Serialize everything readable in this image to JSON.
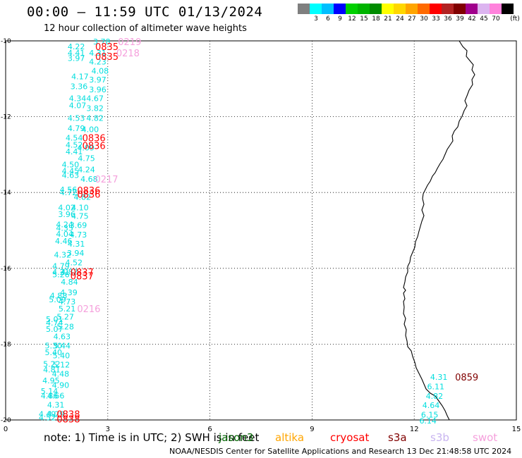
{
  "title": "00:00 — 11:59 UTC 01/13/2024",
  "subtitle": "12 hour collection of altimeter wave heights",
  "colorbar": {
    "unit": "(ft)",
    "items": [
      {
        "label": "",
        "color": "#7f7f7f"
      },
      {
        "label": "3",
        "color": "#00ffff"
      },
      {
        "label": "6",
        "color": "#00bfff"
      },
      {
        "label": "9",
        "color": "#0000ff"
      },
      {
        "label": "12",
        "color": "#00d000"
      },
      {
        "label": "15",
        "color": "#00b400"
      },
      {
        "label": "18",
        "color": "#008c00"
      },
      {
        "label": "21",
        "color": "#ffff00"
      },
      {
        "label": "24",
        "color": "#ffd700"
      },
      {
        "label": "27",
        "color": "#ffa500"
      },
      {
        "label": "30",
        "color": "#ff6a00"
      },
      {
        "label": "33",
        "color": "#ff0000"
      },
      {
        "label": "36",
        "color": "#b22222"
      },
      {
        "label": "39",
        "color": "#800000"
      },
      {
        "label": "42",
        "color": "#a0008c"
      },
      {
        "label": "45",
        "color": "#dcb4f0"
      },
      {
        "label": "70",
        "color": "#ff82dc"
      },
      {
        "label": "",
        "color": "#000000"
      }
    ]
  },
  "axes": {
    "x_ticks": [
      "0",
      "3",
      "6",
      "9",
      "12",
      "15"
    ],
    "y_ticks": [
      "-10",
      "-12",
      "-14",
      "-16",
      "-18",
      "-20"
    ],
    "x_range": [
      0,
      15
    ],
    "y_range": [
      -20,
      -10
    ]
  },
  "colors": {
    "wave": "#00dede",
    "jason3": "#006400",
    "altika": "#ffa500",
    "cryosat": "#ff0000",
    "s3a": "#800000",
    "s3b": "#c8b4f0",
    "swot": "#f5a0dc"
  },
  "wave_labels": [
    {
      "text": "3.78",
      "x": 2.57,
      "y": -10.0
    },
    {
      "text": "4.22",
      "x": 1.82,
      "y": -10.13
    },
    {
      "text": "4.41",
      "x": 1.82,
      "y": -10.3
    },
    {
      "text": "4.31",
      "x": 2.45,
      "y": -10.3
    },
    {
      "text": "3.97",
      "x": 1.82,
      "y": -10.44
    },
    {
      "text": "4.23",
      "x": 2.45,
      "y": -10.53
    },
    {
      "text": "4.08",
      "x": 2.52,
      "y": -10.77
    },
    {
      "text": "4.17",
      "x": 1.93,
      "y": -10.92
    },
    {
      "text": "3.97",
      "x": 2.45,
      "y": -11.0
    },
    {
      "text": "3.36",
      "x": 1.9,
      "y": -11.18
    },
    {
      "text": "3.96",
      "x": 2.45,
      "y": -11.26
    },
    {
      "text": "4.34",
      "x": 1.86,
      "y": -11.5
    },
    {
      "text": "4.67",
      "x": 2.37,
      "y": -11.5
    },
    {
      "text": "4.07",
      "x": 1.86,
      "y": -11.68
    },
    {
      "text": "3.82",
      "x": 2.37,
      "y": -11.76
    },
    {
      "text": "4.53",
      "x": 1.82,
      "y": -12.02
    },
    {
      "text": "4.82",
      "x": 2.37,
      "y": -12.02
    },
    {
      "text": "4.79",
      "x": 1.82,
      "y": -12.29
    },
    {
      "text": "4.00",
      "x": 2.23,
      "y": -12.31
    },
    {
      "text": "4.54",
      "x": 1.76,
      "y": -12.54
    },
    {
      "text": "4.52",
      "x": 1.76,
      "y": -12.72
    },
    {
      "text": "4.09",
      "x": 2.1,
      "y": -12.8
    },
    {
      "text": "4.41",
      "x": 1.76,
      "y": -12.9
    },
    {
      "text": "4.75",
      "x": 2.12,
      "y": -13.08
    },
    {
      "text": "4.50",
      "x": 1.65,
      "y": -13.24
    },
    {
      "text": "4.24",
      "x": 2.12,
      "y": -13.37
    },
    {
      "text": "4.45",
      "x": 1.65,
      "y": -13.41
    },
    {
      "text": "4.63",
      "x": 1.65,
      "y": -13.52
    },
    {
      "text": "4.68",
      "x": 2.2,
      "y": -13.62
    },
    {
      "text": "4.56",
      "x": 1.59,
      "y": -13.9
    },
    {
      "text": "4.72",
      "x": 1.59,
      "y": -13.98
    },
    {
      "text": "4.82",
      "x": 2.0,
      "y": -14.1
    },
    {
      "text": "4.02",
      "x": 1.54,
      "y": -14.38
    },
    {
      "text": "4.10",
      "x": 1.93,
      "y": -14.38
    },
    {
      "text": "3.96",
      "x": 1.54,
      "y": -14.55
    },
    {
      "text": "4.75",
      "x": 1.93,
      "y": -14.6
    },
    {
      "text": "4.24",
      "x": 1.48,
      "y": -14.82
    },
    {
      "text": "3.69",
      "x": 1.88,
      "y": -14.84
    },
    {
      "text": "4.35",
      "x": 1.48,
      "y": -14.92
    },
    {
      "text": "4.04",
      "x": 1.48,
      "y": -15.07
    },
    {
      "text": "4.73",
      "x": 1.88,
      "y": -15.09
    },
    {
      "text": "4.46",
      "x": 1.45,
      "y": -15.26
    },
    {
      "text": "4.31",
      "x": 1.82,
      "y": -15.33
    },
    {
      "text": "4.32",
      "x": 1.42,
      "y": -15.62
    },
    {
      "text": "3.94",
      "x": 1.8,
      "y": -15.58
    },
    {
      "text": "4.52",
      "x": 1.75,
      "y": -15.83
    },
    {
      "text": "4.79",
      "x": 1.37,
      "y": -15.92
    },
    {
      "text": "4.21",
      "x": 1.37,
      "y": -16.08
    },
    {
      "text": "4.82",
      "x": 1.62,
      "y": -16.07
    },
    {
      "text": "5.26",
      "x": 1.37,
      "y": -16.14
    },
    {
      "text": "4.84",
      "x": 1.62,
      "y": -16.34
    },
    {
      "text": "4.39",
      "x": 1.6,
      "y": -16.62
    },
    {
      "text": "4.88",
      "x": 1.3,
      "y": -16.7
    },
    {
      "text": "5.09",
      "x": 1.27,
      "y": -16.8
    },
    {
      "text": "4.73",
      "x": 1.55,
      "y": -16.86
    },
    {
      "text": "5.21",
      "x": 1.55,
      "y": -17.04
    },
    {
      "text": "5.27",
      "x": 1.5,
      "y": -17.26
    },
    {
      "text": "5.01",
      "x": 1.18,
      "y": -17.32
    },
    {
      "text": "4.74",
      "x": 1.18,
      "y": -17.42
    },
    {
      "text": "5.28",
      "x": 1.5,
      "y": -17.52
    },
    {
      "text": "5.07",
      "x": 1.18,
      "y": -17.58
    },
    {
      "text": "4.63",
      "x": 1.4,
      "y": -17.78
    },
    {
      "text": "5.30",
      "x": 1.15,
      "y": -18.02
    },
    {
      "text": "5.44",
      "x": 1.4,
      "y": -18.02
    },
    {
      "text": "5.40",
      "x": 1.15,
      "y": -18.2
    },
    {
      "text": "5.40",
      "x": 1.38,
      "y": -18.28
    },
    {
      "text": "5.22",
      "x": 1.1,
      "y": -18.5
    },
    {
      "text": "5.12",
      "x": 1.38,
      "y": -18.52
    },
    {
      "text": "4.81",
      "x": 1.1,
      "y": -18.65
    },
    {
      "text": "4.48",
      "x": 1.36,
      "y": -18.76
    },
    {
      "text": "4.95",
      "x": 1.08,
      "y": -18.94
    },
    {
      "text": "4.90",
      "x": 1.36,
      "y": -19.06
    },
    {
      "text": "5.14",
      "x": 1.03,
      "y": -19.22
    },
    {
      "text": "4.86",
      "x": 1.03,
      "y": -19.34
    },
    {
      "text": "4.66",
      "x": 1.22,
      "y": -19.34
    },
    {
      "text": "4.31",
      "x": 1.22,
      "y": -19.58
    },
    {
      "text": "4.49",
      "x": 0.97,
      "y": -19.82
    },
    {
      "text": "4.29",
      "x": 1.22,
      "y": -19.82
    },
    {
      "text": "4.52",
      "x": 0.97,
      "y": -19.92
    },
    {
      "text": "4.31",
      "x": 12.47,
      "y": -18.85
    },
    {
      "text": "6.11",
      "x": 12.38,
      "y": -19.1
    },
    {
      "text": "4.82",
      "x": 12.34,
      "y": -19.35
    },
    {
      "text": "4.64",
      "x": 12.24,
      "y": -19.59
    },
    {
      "text": "6.15",
      "x": 12.2,
      "y": -19.84
    },
    {
      "text": "6.14",
      "x": 12.15,
      "y": -20.0
    }
  ],
  "time_labels": [
    {
      "text": "0219",
      "x": 3.3,
      "y": -10.0,
      "sat": "swot"
    },
    {
      "text": "0835",
      "x": 2.63,
      "y": -10.13,
      "sat": "cryosat"
    },
    {
      "text": "0218",
      "x": 3.25,
      "y": -10.3,
      "sat": "swot"
    },
    {
      "text": "0835",
      "x": 2.63,
      "y": -10.39,
      "sat": "cryosat"
    },
    {
      "text": "0836",
      "x": 2.25,
      "y": -12.54,
      "sat": "cryosat"
    },
    {
      "text": "0836",
      "x": 2.25,
      "y": -12.74,
      "sat": "cryosat"
    },
    {
      "text": "0217",
      "x": 2.62,
      "y": -13.62,
      "sat": "swot"
    },
    {
      "text": "0836",
      "x": 2.1,
      "y": -13.92,
      "sat": "cryosat"
    },
    {
      "text": "0836",
      "x": 2.1,
      "y": -14.02,
      "sat": "cryosat"
    },
    {
      "text": "0837",
      "x": 1.9,
      "y": -16.08,
      "sat": "cryosat"
    },
    {
      "text": "0837",
      "x": 1.9,
      "y": -16.18,
      "sat": "cryosat"
    },
    {
      "text": "0216",
      "x": 2.1,
      "y": -17.04,
      "sat": "swot"
    },
    {
      "text": "0838",
      "x": 1.5,
      "y": -19.82,
      "sat": "cryosat"
    },
    {
      "text": "0838",
      "x": 1.5,
      "y": -19.95,
      "sat": "cryosat"
    },
    {
      "text": "0859",
      "x": 13.2,
      "y": -18.85,
      "sat": "s3a"
    }
  ],
  "note": {
    "prefix": "note:  1) Time is in UTC; 2) SWH is in feet",
    "sats": [
      {
        "name": "jason3",
        "label": "jason3"
      },
      {
        "name": "altika",
        "label": "altika"
      },
      {
        "name": "cryosat",
        "label": "cryosat"
      },
      {
        "name": "s3a",
        "label": "s3a"
      },
      {
        "name": "s3b",
        "label": "s3b"
      },
      {
        "name": "swot",
        "label": "swot"
      }
    ]
  },
  "credit": "NOAA/NESDIS Center for Satellite Applications and Research   13 Dec 21:48:58 UTC 2024"
}
